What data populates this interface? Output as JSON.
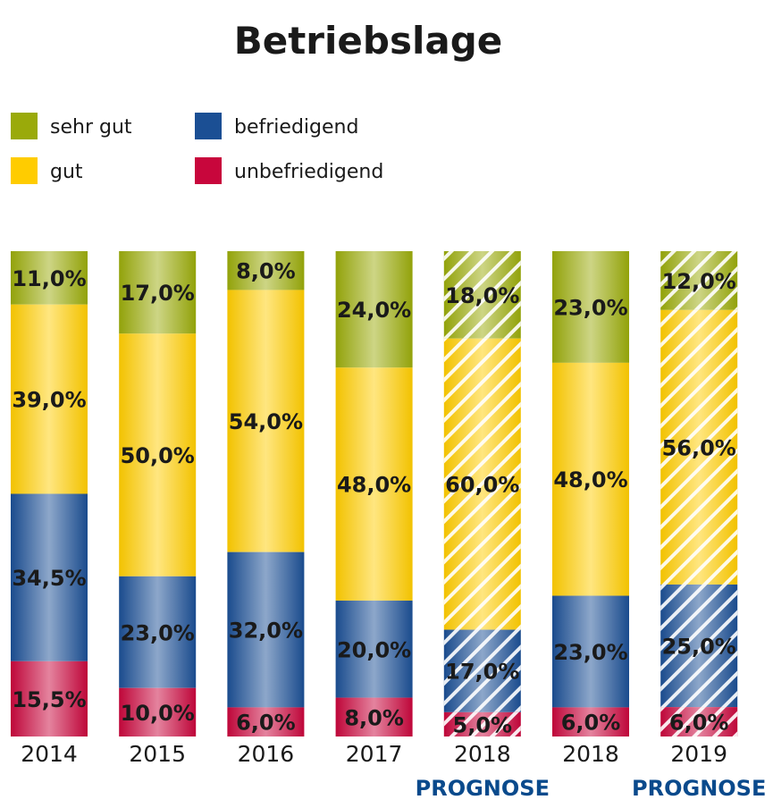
{
  "chart_data": {
    "type": "bar",
    "stacked": true,
    "title": "Betriebslage",
    "legend": [
      {
        "name": "sehr gut",
        "color": "#9aaa0a"
      },
      {
        "name": "befriedigend",
        "color": "#1b4f94"
      },
      {
        "name": "gut",
        "color": "#ffcc00"
      },
      {
        "name": "unbefriedigend",
        "color": "#c8063c"
      }
    ],
    "categories": [
      {
        "label": "2014",
        "sublabel": "",
        "hatched": false
      },
      {
        "label": "2015",
        "sublabel": "",
        "hatched": false
      },
      {
        "label": "2016",
        "sublabel": "",
        "hatched": false
      },
      {
        "label": "2017",
        "sublabel": "",
        "hatched": false
      },
      {
        "label": "2018",
        "sublabel": "PROGNOSE",
        "hatched": true
      },
      {
        "label": "2018",
        "sublabel": "",
        "hatched": false
      },
      {
        "label": "2019",
        "sublabel": "PROGNOSE",
        "hatched": true
      }
    ],
    "series": [
      {
        "name": "sehr gut",
        "color": "#9aaa0a",
        "values": [
          11.0,
          17.0,
          8.0,
          24.0,
          18.0,
          23.0,
          12.0
        ],
        "labels": [
          "11,0%",
          "17,0%",
          "8,0%",
          "24,0%",
          "18,0%",
          "23,0%",
          "12,0%"
        ]
      },
      {
        "name": "gut",
        "color": "#ffcc00",
        "values": [
          39.0,
          50.0,
          54.0,
          48.0,
          60.0,
          48.0,
          56.0
        ],
        "labels": [
          "39,0%",
          "50,0%",
          "54,0%",
          "48,0%",
          "60,0%",
          "48,0%",
          "56,0%"
        ]
      },
      {
        "name": "befriedigend",
        "color": "#1b4f94",
        "values": [
          34.5,
          23.0,
          32.0,
          20.0,
          17.0,
          23.0,
          25.0
        ],
        "labels": [
          "34,5%",
          "23,0%",
          "32,0%",
          "20,0%",
          "17,0%",
          "23,0%",
          "25,0%"
        ]
      },
      {
        "name": "unbefriedigend",
        "color": "#c8063c",
        "values": [
          15.5,
          10.0,
          6.0,
          8.0,
          5.0,
          6.0,
          6.0
        ],
        "labels": [
          "15,5%",
          "10,0%",
          "6,0%",
          "8,0%",
          "5,0%",
          "6,0%",
          "6,0%"
        ]
      }
    ],
    "sublabel_color": "#0a4a8c",
    "grid": false
  }
}
